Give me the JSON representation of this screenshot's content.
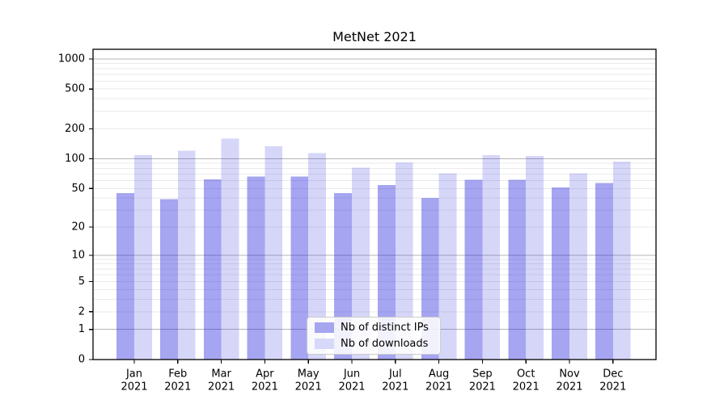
{
  "chart_data": {
    "type": "bar",
    "title": "MetNet 2021",
    "categories": [
      "Jan",
      "Feb",
      "Mar",
      "Apr",
      "May",
      "Jun",
      "Jul",
      "Aug",
      "Sep",
      "Oct",
      "Nov",
      "Dec"
    ],
    "category_year": "2021",
    "series": [
      {
        "name": "Nb of distinct IPs",
        "color_hex": "#a5a5f0",
        "color_rgba": "rgba(30,30,220,0.4)",
        "values": [
          45,
          39,
          62,
          66,
          66,
          45,
          54,
          40,
          61,
          61,
          51,
          57
        ]
      },
      {
        "name": "Nb of downloads",
        "color_hex": "#d8d8f8",
        "color_rgba": "rgba(50,50,225,0.2)",
        "values": [
          109,
          120,
          160,
          134,
          114,
          81,
          92,
          71,
          109,
          107,
          71,
          94
        ]
      }
    ],
    "yticks": [
      0,
      1,
      2,
      5,
      10,
      20,
      50,
      100,
      200,
      500,
      1000
    ],
    "major_grid_values": [
      1,
      10,
      100,
      1000
    ],
    "scale": "log1p",
    "ylim": [
      0,
      1250
    ],
    "xlabel": "",
    "ylabel": "",
    "grid": true,
    "legend_position": "lower center",
    "colors": {
      "major_grid": "#b4b4b4",
      "minor_grid": "#eaeaea",
      "spine": "#000000",
      "text": "#000000"
    }
  }
}
